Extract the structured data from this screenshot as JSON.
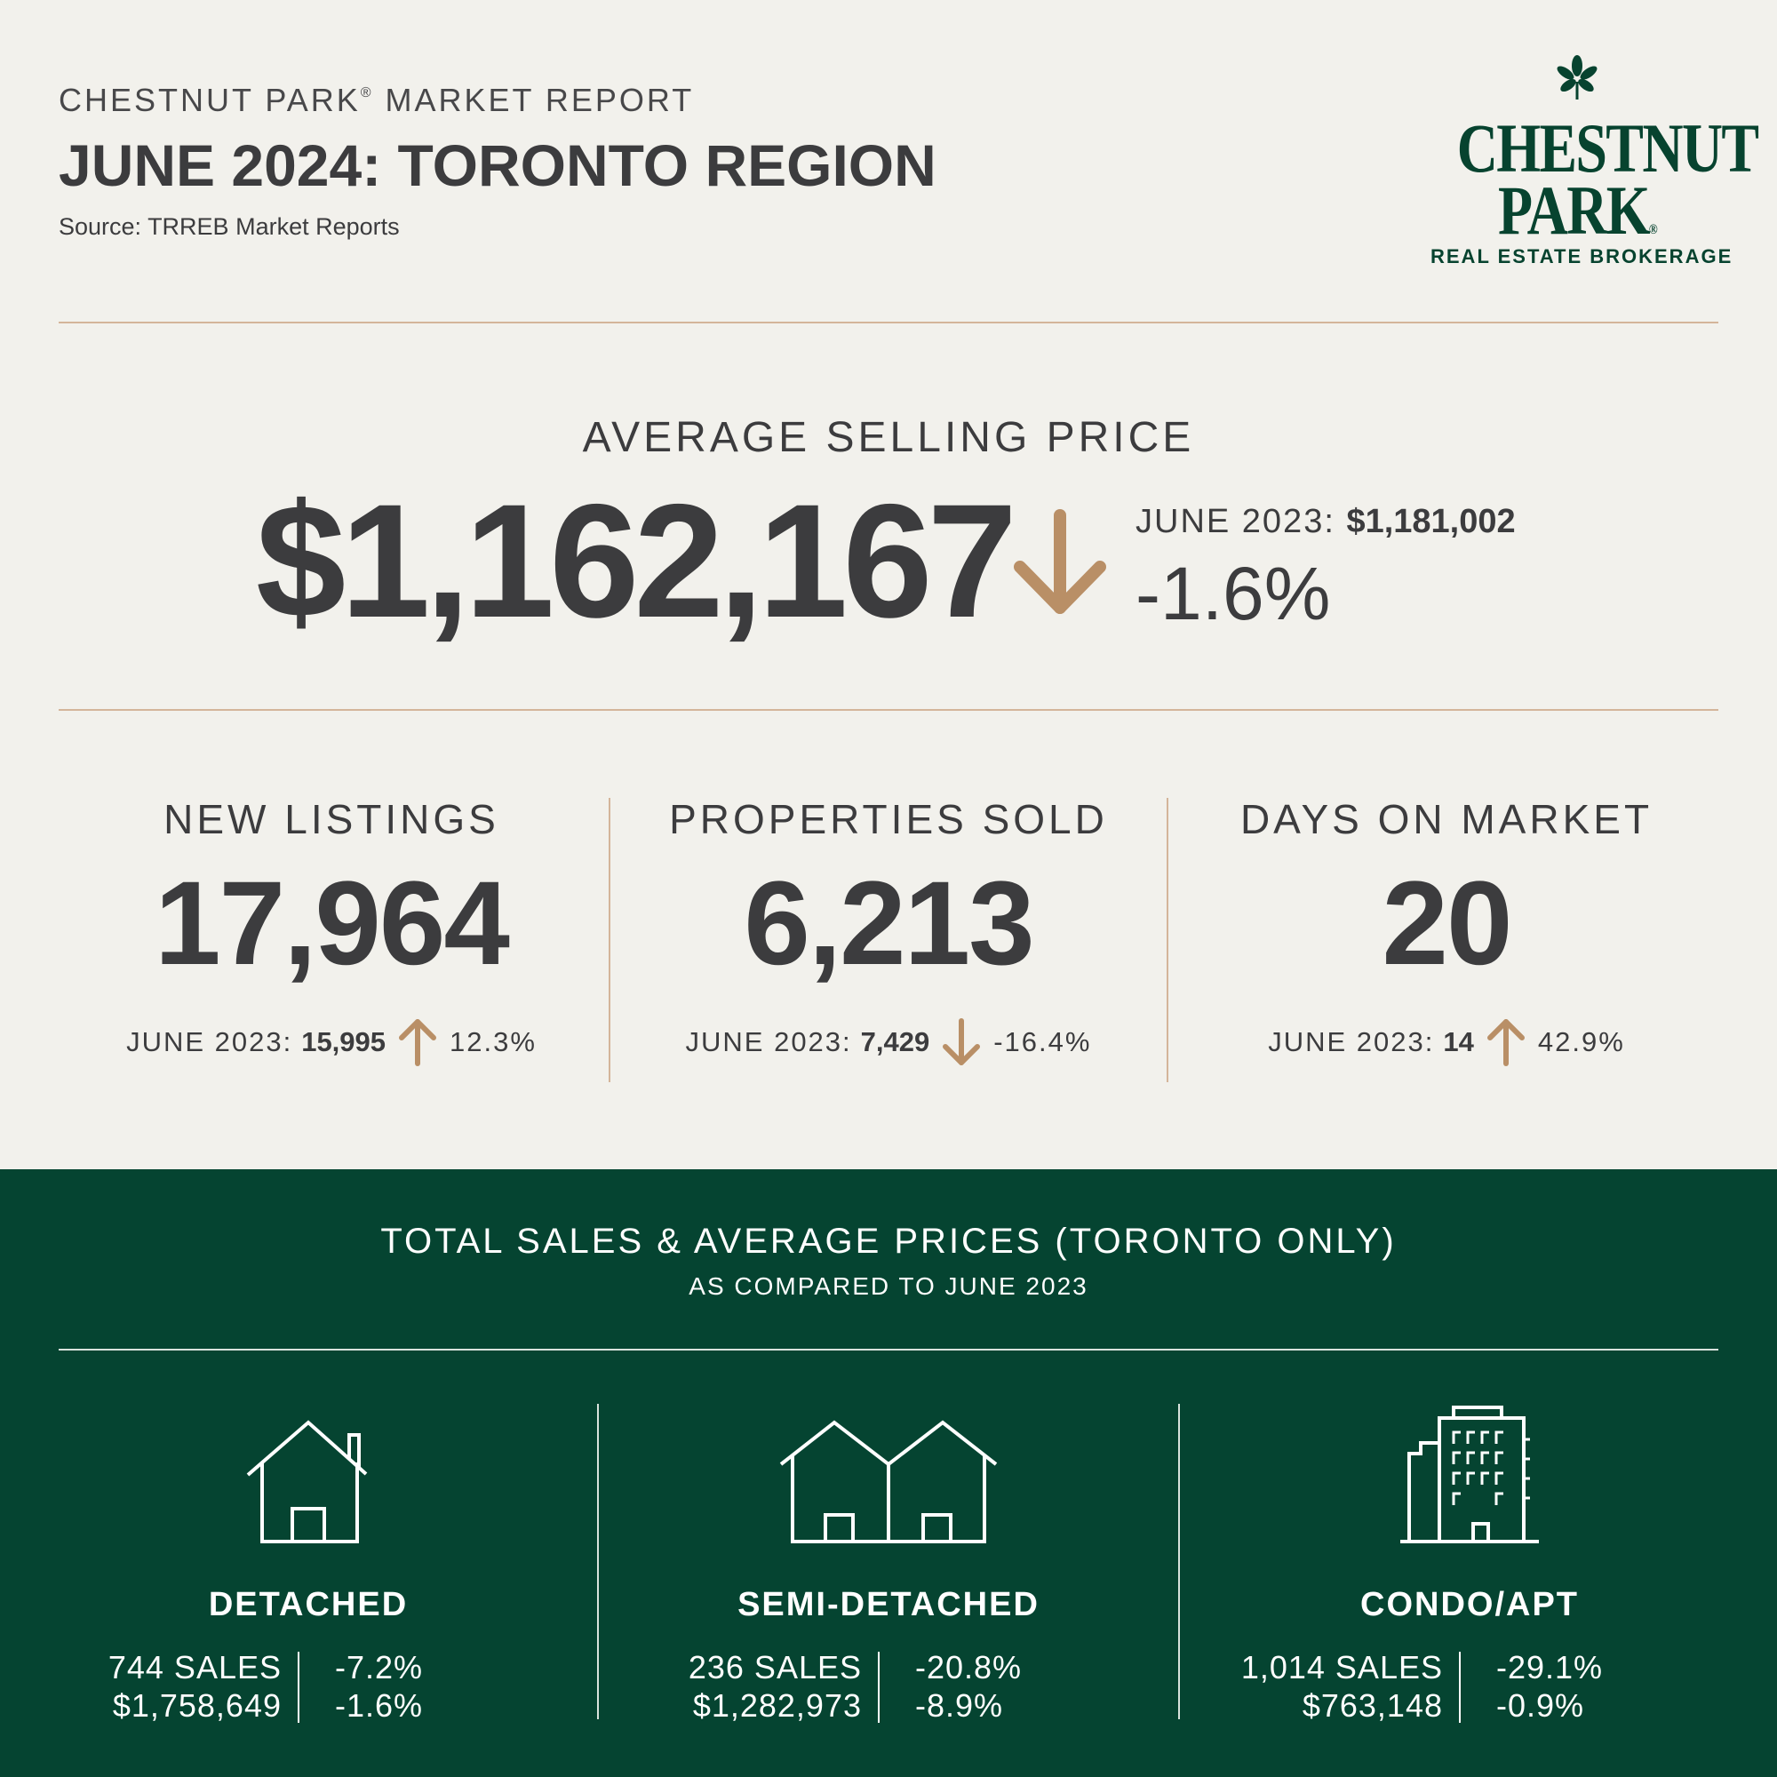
{
  "header": {
    "kicker_prefix": "CHESTNUT PARK",
    "kicker_mark": "®",
    "kicker_suffix": " MARKET REPORT",
    "title": "JUNE 2024: TORONTO REGION",
    "source": "Source: TRREB Market Reports"
  },
  "logo": {
    "line1": "CHESTNUT",
    "line2": "PARK",
    "registered": "®",
    "tagline": "REAL ESTATE BROKERAGE"
  },
  "colors": {
    "background": "#f2f1ec",
    "text": "#3c3c3e",
    "accent_brown": "#b98f66",
    "brand_green": "#054431"
  },
  "average_price": {
    "label": "AVERAGE SELLING PRICE",
    "value": "$1,162,167",
    "direction_icon": "arrow-down-icon",
    "prev_label": "JUNE 2023:",
    "prev_value": "$1,181,002",
    "change": "-1.6%"
  },
  "stats": [
    {
      "label": "NEW LISTINGS",
      "value": "17,964",
      "prev_label": "JUNE 2023:",
      "prev_value": "15,995",
      "direction_icon": "arrow-up-icon",
      "change": "12.3%"
    },
    {
      "label": "PROPERTIES SOLD",
      "value": "6,213",
      "prev_label": "JUNE 2023:",
      "prev_value": "7,429",
      "direction_icon": "arrow-down-icon",
      "change": "-16.4%"
    },
    {
      "label": "DAYS ON MARKET",
      "value": "20",
      "prev_label": "JUNE 2023:",
      "prev_value": "14",
      "direction_icon": "arrow-up-icon",
      "change": "42.9%"
    }
  ],
  "toronto": {
    "title": "TOTAL SALES & AVERAGE PRICES (TORONTO ONLY)",
    "subtitle": "AS COMPARED TO JUNE 2023",
    "types": [
      {
        "icon": "detached-house-icon",
        "name": "DETACHED",
        "sales": "744 SALES",
        "price": "$1,758,649",
        "sales_change": "-7.2%",
        "price_change": "-1.6%"
      },
      {
        "icon": "semi-detached-house-icon",
        "name": "SEMI-DETACHED",
        "sales": "236 SALES",
        "price": "$1,282,973",
        "sales_change": "-20.8%",
        "price_change": "-8.9%"
      },
      {
        "icon": "condo-building-icon",
        "name": "CONDO/APT",
        "sales": "1,014 SALES",
        "price": "$763,148",
        "sales_change": "-29.1%",
        "price_change": "-0.9%"
      }
    ]
  }
}
